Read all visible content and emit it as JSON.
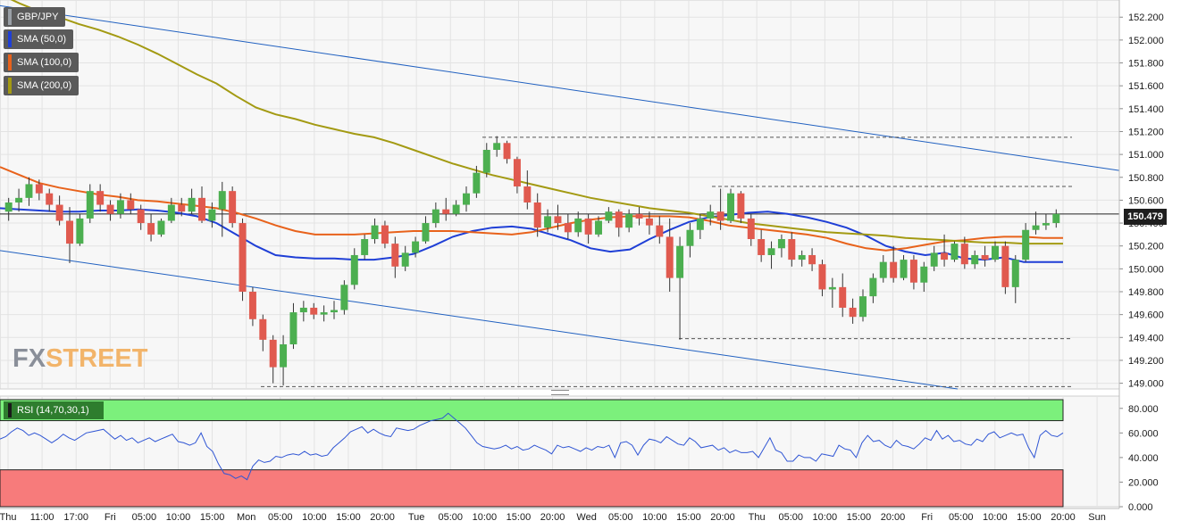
{
  "symbol": "GBP/JPY",
  "indicators": [
    {
      "label": "SMA (50,0)",
      "color": "#1f3fd6"
    },
    {
      "label": "SMA (100,0)",
      "color": "#e8621b"
    },
    {
      "label": "SMA (200,0)",
      "color": "#a39a12"
    }
  ],
  "rsi_label": "RSI (14,70,30,1)",
  "logo": {
    "part1": "FX",
    "part2": "STREET"
  },
  "current_price": "150.479",
  "colors": {
    "up": "#4caf50",
    "down": "#e05a4f",
    "rsi_line": "#2f55d4",
    "overbought": "#7cf07c",
    "oversold": "#f77b7b",
    "trend": "#2060c0"
  },
  "chart_data": [
    {
      "type": "candlestick",
      "ylim": [
        148.95,
        152.35
      ],
      "y_ticks": [
        "152.200",
        "152.000",
        "151.800",
        "151.600",
        "151.400",
        "151.200",
        "151.000",
        "150.800",
        "150.600",
        "150.400",
        "150.200",
        "150.000",
        "149.800",
        "149.600",
        "149.400",
        "149.200",
        "149.000"
      ],
      "x_ticks": [
        "Thu",
        "11:00",
        "17:00",
        "Fri",
        "05:00",
        "10:00",
        "15:00",
        "Mon",
        "05:00",
        "10:00",
        "15:00",
        "20:00",
        "Tue",
        "05:00",
        "10:00",
        "15:00",
        "20:00",
        "Wed",
        "05:00",
        "10:00",
        "15:00",
        "20:00",
        "Thu",
        "05:00",
        "10:00",
        "15:00",
        "20:00",
        "Fri",
        "05:00",
        "10:00",
        "15:00",
        "20:00",
        "Sun"
      ],
      "series": [
        {
          "name": "SMA (50,0)",
          "values": [
            150.53,
            150.52,
            150.51,
            150.5,
            150.5,
            150.51,
            150.51,
            150.52,
            150.51,
            150.49,
            150.46,
            150.4,
            150.3,
            150.2,
            150.12,
            150.1,
            150.09,
            150.09,
            150.08,
            150.08,
            150.1,
            150.13,
            150.2,
            150.28,
            150.33,
            150.36,
            150.37,
            150.35,
            150.3,
            150.25,
            150.18,
            150.15,
            150.17,
            150.26,
            150.34,
            150.41,
            150.45,
            150.47,
            150.49,
            150.5,
            150.48,
            150.45,
            150.41,
            150.36,
            150.29,
            150.2,
            150.15,
            150.12,
            150.14,
            150.09,
            150.08,
            150.1,
            150.06,
            150.06,
            150.06
          ]
        },
        {
          "name": "SMA (100,0)",
          "values": [
            150.89,
            150.82,
            150.75,
            150.71,
            150.68,
            150.65,
            150.63,
            150.6,
            150.59,
            150.57,
            150.55,
            150.53,
            150.49,
            150.44,
            150.38,
            150.33,
            150.3,
            150.3,
            150.3,
            150.31,
            150.32,
            150.33,
            150.33,
            150.33,
            150.32,
            150.31,
            150.3,
            150.32,
            150.36,
            150.4,
            150.43,
            150.45,
            150.46,
            150.46,
            150.46,
            150.45,
            150.42,
            150.38,
            150.36,
            150.34,
            150.32,
            150.3,
            150.27,
            150.22,
            150.18,
            150.16,
            150.18,
            150.21,
            150.24,
            150.25,
            150.27,
            150.28,
            150.28,
            150.27,
            150.27
          ]
        },
        {
          "name": "SMA (200,0)",
          "values": [
            152.4,
            152.32,
            152.25,
            152.2,
            152.14,
            152.09,
            152.03,
            151.96,
            151.88,
            151.79,
            151.7,
            151.62,
            151.51,
            151.41,
            151.35,
            151.31,
            151.26,
            151.22,
            151.18,
            151.15,
            151.1,
            151.04,
            150.98,
            150.92,
            150.87,
            150.82,
            150.78,
            150.74,
            150.7,
            150.66,
            150.62,
            150.59,
            150.56,
            150.53,
            150.51,
            150.49,
            150.46,
            150.43,
            150.4,
            150.38,
            150.36,
            150.34,
            150.32,
            150.31,
            150.3,
            150.29,
            150.27,
            150.26,
            150.25,
            150.24,
            150.23,
            150.23,
            150.22,
            150.22,
            150.22
          ]
        }
      ],
      "candles": [
        [
          150.5,
          150.62,
          150.42,
          150.58
        ],
        [
          150.58,
          150.7,
          150.5,
          150.62
        ],
        [
          150.62,
          150.8,
          150.55,
          150.74
        ],
        [
          150.74,
          150.78,
          150.6,
          150.66
        ],
        [
          150.66,
          150.7,
          150.5,
          150.56
        ],
        [
          150.56,
          150.64,
          150.38,
          150.42
        ],
        [
          150.42,
          150.54,
          150.05,
          150.22
        ],
        [
          150.22,
          150.48,
          150.2,
          150.44
        ],
        [
          150.44,
          150.74,
          150.4,
          150.68
        ],
        [
          150.68,
          150.74,
          150.5,
          150.56
        ],
        [
          150.56,
          150.6,
          150.42,
          150.48
        ],
        [
          150.48,
          150.66,
          150.44,
          150.6
        ],
        [
          150.6,
          150.66,
          150.48,
          150.52
        ],
        [
          150.52,
          150.56,
          150.34,
          150.4
        ],
        [
          150.4,
          150.48,
          150.24,
          150.3
        ],
        [
          150.3,
          150.44,
          150.28,
          150.42
        ],
        [
          150.42,
          150.62,
          150.4,
          150.56
        ],
        [
          150.56,
          150.62,
          150.46,
          150.5
        ],
        [
          150.5,
          150.7,
          150.48,
          150.62
        ],
        [
          150.62,
          150.72,
          150.4,
          150.42
        ],
        [
          150.42,
          150.58,
          150.36,
          150.52
        ],
        [
          150.52,
          150.76,
          150.28,
          150.68
        ],
        [
          150.68,
          150.72,
          150.36,
          150.4
        ],
        [
          150.4,
          150.44,
          149.72,
          149.8
        ],
        [
          149.8,
          149.84,
          149.5,
          149.56
        ],
        [
          149.56,
          149.6,
          149.28,
          149.38
        ],
        [
          149.38,
          149.42,
          149.0,
          149.14
        ],
        [
          149.14,
          149.42,
          148.98,
          149.34
        ],
        [
          149.34,
          149.7,
          149.3,
          149.62
        ],
        [
          149.62,
          149.72,
          149.54,
          149.66
        ],
        [
          149.66,
          149.7,
          149.56,
          149.6
        ],
        [
          149.6,
          149.68,
          149.54,
          149.62
        ],
        [
          149.62,
          149.72,
          149.56,
          149.64
        ],
        [
          149.64,
          149.9,
          149.6,
          149.86
        ],
        [
          149.86,
          150.18,
          149.82,
          150.12
        ],
        [
          150.12,
          150.3,
          150.08,
          150.26
        ],
        [
          150.26,
          150.44,
          150.22,
          150.38
        ],
        [
          150.38,
          150.42,
          150.18,
          150.22
        ],
        [
          150.22,
          150.28,
          149.92,
          150.02
        ],
        [
          150.02,
          150.2,
          149.98,
          150.14
        ],
        [
          150.14,
          150.28,
          150.1,
          150.24
        ],
        [
          150.24,
          150.46,
          150.22,
          150.4
        ],
        [
          150.4,
          150.58,
          150.36,
          150.52
        ],
        [
          150.52,
          150.62,
          150.42,
          150.48
        ],
        [
          150.48,
          150.6,
          150.46,
          150.56
        ],
        [
          150.56,
          150.72,
          150.5,
          150.66
        ],
        [
          150.66,
          150.9,
          150.62,
          150.84
        ],
        [
          150.84,
          151.1,
          150.8,
          151.04
        ],
        [
          151.04,
          151.16,
          150.98,
          151.1
        ],
        [
          151.1,
          151.12,
          150.92,
          150.96
        ],
        [
          150.96,
          150.98,
          150.66,
          150.72
        ],
        [
          150.72,
          150.86,
          150.52,
          150.58
        ],
        [
          150.58,
          150.66,
          150.28,
          150.36
        ],
        [
          150.36,
          150.52,
          150.32,
          150.46
        ],
        [
          150.46,
          150.56,
          150.34,
          150.4
        ],
        [
          150.4,
          150.48,
          150.26,
          150.32
        ],
        [
          150.32,
          150.5,
          150.28,
          150.44
        ],
        [
          150.44,
          150.48,
          150.22,
          150.3
        ],
        [
          150.3,
          150.46,
          150.28,
          150.42
        ],
        [
          150.42,
          150.54,
          150.4,
          150.5
        ],
        [
          150.5,
          150.52,
          150.28,
          150.36
        ],
        [
          150.36,
          150.52,
          150.32,
          150.48
        ],
        [
          150.48,
          150.54,
          150.38,
          150.44
        ],
        [
          150.44,
          150.5,
          150.3,
          150.38
        ],
        [
          150.38,
          150.46,
          150.22,
          150.28
        ],
        [
          150.28,
          150.44,
          149.8,
          149.92
        ],
        [
          149.92,
          150.28,
          149.38,
          150.2
        ],
        [
          150.2,
          150.4,
          150.1,
          150.34
        ],
        [
          150.34,
          150.48,
          150.26,
          150.44
        ],
        [
          150.44,
          150.56,
          150.38,
          150.5
        ],
        [
          150.5,
          150.7,
          150.34,
          150.42
        ],
        [
          150.42,
          150.7,
          150.4,
          150.66
        ],
        [
          150.66,
          150.68,
          150.4,
          150.44
        ],
        [
          150.44,
          150.48,
          150.2,
          150.26
        ],
        [
          150.26,
          150.34,
          150.06,
          150.12
        ],
        [
          150.12,
          150.24,
          150.0,
          150.18
        ],
        [
          150.18,
          150.3,
          150.1,
          150.26
        ],
        [
          150.26,
          150.32,
          150.02,
          150.08
        ],
        [
          150.08,
          150.16,
          150.02,
          150.12
        ],
        [
          150.12,
          150.18,
          149.98,
          150.04
        ],
        [
          150.04,
          150.08,
          149.76,
          149.82
        ],
        [
          149.82,
          149.92,
          149.66,
          149.84
        ],
        [
          149.84,
          149.96,
          149.58,
          149.66
        ],
        [
          149.66,
          149.74,
          149.52,
          149.58
        ],
        [
          149.58,
          149.82,
          149.54,
          149.76
        ],
        [
          149.76,
          149.96,
          149.7,
          149.92
        ],
        [
          149.92,
          150.12,
          149.88,
          150.06
        ],
        [
          150.06,
          150.2,
          149.88,
          149.92
        ],
        [
          149.92,
          150.12,
          149.9,
          150.08
        ],
        [
          150.08,
          150.12,
          149.82,
          149.88
        ],
        [
          149.88,
          150.06,
          149.8,
          150.02
        ],
        [
          150.02,
          150.2,
          149.98,
          150.14
        ],
        [
          150.14,
          150.3,
          150.02,
          150.08
        ],
        [
          150.08,
          150.24,
          150.06,
          150.22
        ],
        [
          150.22,
          150.28,
          150.0,
          150.04
        ],
        [
          150.04,
          150.16,
          150.0,
          150.12
        ],
        [
          150.12,
          150.2,
          150.02,
          150.08
        ],
        [
          150.08,
          150.24,
          150.06,
          150.2
        ],
        [
          150.2,
          150.24,
          149.78,
          149.84
        ],
        [
          149.84,
          150.12,
          149.7,
          150.08
        ],
        [
          150.08,
          150.4,
          150.06,
          150.34
        ],
        [
          150.34,
          150.5,
          150.3,
          150.38
        ],
        [
          150.38,
          150.48,
          150.34,
          150.4
        ],
        [
          150.4,
          150.52,
          150.36,
          150.48
        ]
      ],
      "channel_upper": [
        152.3,
        150.86
      ],
      "channel_lower": [
        150.16,
        148.95
      ],
      "levels": [
        151.15,
        150.72,
        149.39,
        148.97
      ]
    },
    {
      "type": "line",
      "title": "RSI (14,70,30,1)",
      "ylim": [
        0,
        90
      ],
      "y_ticks": [
        "80.000",
        "60.000",
        "40.000",
        "20.000",
        "0.000"
      ],
      "overbought_zone": [
        70,
        95
      ],
      "oversold_zone": [
        0,
        30
      ],
      "values": [
        55,
        57,
        61,
        64,
        62,
        58,
        60,
        58,
        55,
        52,
        55,
        59,
        56,
        54,
        57,
        60,
        61,
        62,
        63,
        59,
        55,
        58,
        54,
        56,
        52,
        54,
        56,
        53,
        55,
        57,
        59,
        53,
        52,
        50,
        52,
        60,
        49,
        45,
        35,
        27,
        26,
        23,
        25,
        22,
        33,
        38,
        36,
        37,
        41,
        40,
        42,
        43,
        42,
        45,
        42,
        43,
        41,
        42,
        48,
        52,
        56,
        61,
        63,
        65,
        60,
        63,
        60,
        58,
        57,
        64,
        63,
        62,
        63,
        66,
        68,
        70,
        71,
        72,
        76,
        72,
        68,
        64,
        58,
        52,
        49,
        48,
        47,
        48,
        50,
        47,
        49,
        46,
        47,
        50,
        48,
        46,
        43,
        50,
        48,
        49,
        47,
        45,
        48,
        46,
        49,
        48,
        50,
        40,
        52,
        53,
        50,
        42,
        50,
        55,
        54,
        52,
        57,
        54,
        51,
        50,
        56,
        53,
        48,
        49,
        50,
        46,
        48,
        44,
        46,
        44,
        44,
        45,
        40,
        48,
        56,
        46,
        44,
        37,
        37,
        42,
        40,
        40,
        37,
        43,
        42,
        41,
        50,
        47,
        46,
        40,
        52,
        58,
        53,
        54,
        50,
        48,
        54,
        50,
        49,
        47,
        51,
        56,
        54,
        62,
        55,
        58,
        53,
        54,
        51,
        50,
        55,
        53,
        59,
        61,
        56,
        58,
        60,
        58,
        59,
        48,
        40,
        58,
        62,
        58,
        57,
        60
      ]
    }
  ]
}
